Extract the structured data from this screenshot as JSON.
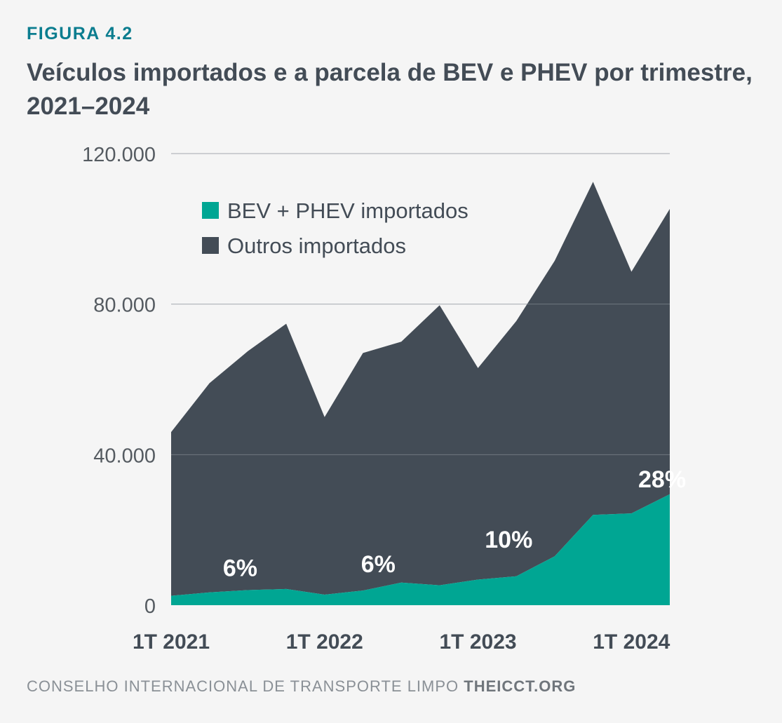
{
  "header": {
    "figure_label": "FIGURA 4.2",
    "title": "Veículos importados e a parcela de BEV e PHEV por trimestre, 2021–2024"
  },
  "footer": {
    "organization": "CONSELHO INTERNACIONAL DE TRANSPORTE LIMPO",
    "website": "THEICCT.ORG"
  },
  "colors": {
    "bev_phev": "#00a693",
    "others": "#434c56",
    "grid": "#d5d7da",
    "axis_text": "#555b61",
    "background": "#f5f5f5",
    "accent": "#0b7d8f"
  },
  "chart_data": {
    "type": "area",
    "stacked": true,
    "x": [
      "1T 2021",
      "2T 2021",
      "3T 2021",
      "4T 2021",
      "1T 2022",
      "2T 2022",
      "3T 2022",
      "4T 2022",
      "1T 2023",
      "2T 2023",
      "3T 2023",
      "4T 2023",
      "1T 2024",
      "2T 2024"
    ],
    "x_tick_labels": [
      "1T 2021",
      "1T 2022",
      "1T 2023",
      "1T 2024"
    ],
    "x_tick_indices": [
      0,
      4,
      8,
      12
    ],
    "y_ticks": [
      0,
      40000,
      80000,
      120000
    ],
    "y_tick_labels": [
      "0",
      "40.000",
      "80.000",
      "120.000"
    ],
    "ylim": [
      0,
      120000
    ],
    "series": [
      {
        "name": "BEV + PHEV importados",
        "values": [
          2500,
          3400,
          4000,
          4300,
          2800,
          3900,
          6000,
          5300,
          6800,
          7700,
          13000,
          24000,
          24400,
          29500
        ]
      },
      {
        "name": "Outros importados",
        "values": [
          43500,
          55600,
          63500,
          70500,
          47200,
          63100,
          64000,
          74400,
          56200,
          67800,
          78500,
          88500,
          64200,
          75800
        ]
      }
    ],
    "annotations": [
      {
        "text": "6%",
        "x_index": 1.8,
        "y": 10000
      },
      {
        "text": "6%",
        "x_index": 5.4,
        "y": 11000
      },
      {
        "text": "10%",
        "x_index": 8.8,
        "y": 17500
      },
      {
        "text": "28%",
        "x_index": 12.8,
        "y": 33500
      }
    ],
    "legend_position": "top-left",
    "grid": true
  }
}
